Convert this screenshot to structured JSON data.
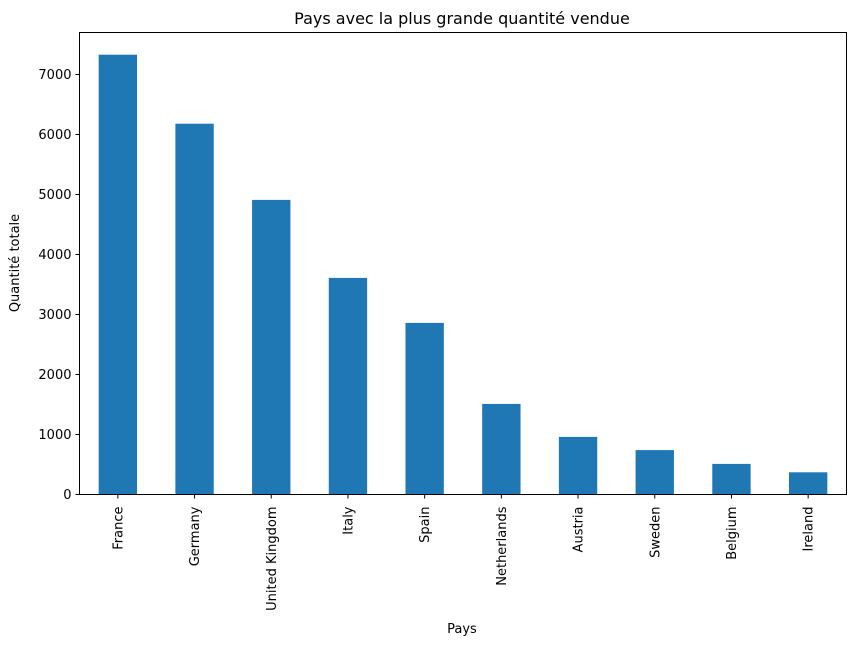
{
  "chart_data": {
    "type": "bar",
    "title": "Pays avec la plus grande quantité vendue",
    "xlabel": "Pays",
    "ylabel": "Quantité totale",
    "categories": [
      "France",
      "Germany",
      "United Kingdom",
      "Italy",
      "Spain",
      "Netherlands",
      "Austria",
      "Sweden",
      "Belgium",
      "Ireland"
    ],
    "values": [
      7330,
      6180,
      4910,
      3610,
      2860,
      1510,
      960,
      740,
      510,
      370
    ],
    "ylim": [
      0,
      7700
    ],
    "yticks": [
      0,
      1000,
      2000,
      3000,
      4000,
      5000,
      6000,
      7000
    ],
    "ytick_labels": [
      "0",
      "1000",
      "2000",
      "3000",
      "4000",
      "5000",
      "6000",
      "7000"
    ],
    "bar_color": "#1f77b4",
    "grid": false,
    "legend": "none"
  }
}
